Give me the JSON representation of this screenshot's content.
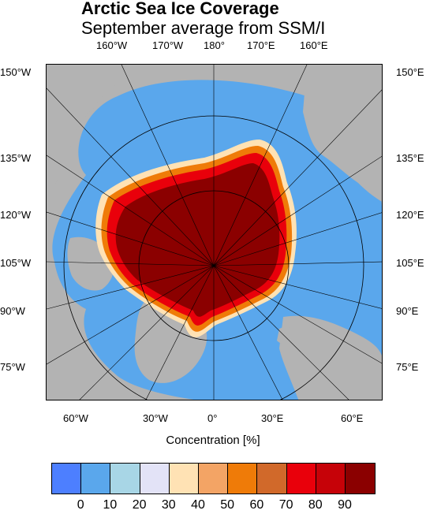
{
  "title": "Arctic Sea Ice Coverage",
  "subtitle": "September average from SSM/I",
  "top_labels": [
    "160°W",
    "170°W",
    "180°",
    "170°E",
    "160°E"
  ],
  "left_labels": [
    "150°W",
    "135°W",
    "120°W",
    "105°W",
    "90°W",
    "75°W"
  ],
  "right_labels": [
    "150°E",
    "135°E",
    "120°E",
    "105°E",
    "90°E",
    "75°E"
  ],
  "bottom_labels": [
    "60°W",
    "30°W",
    "0°",
    "30°E",
    "60°E"
  ],
  "xlabel": "Concentration [%]",
  "colorbar": {
    "colors": [
      "#4d7fff",
      "#5aa7ec",
      "#a8d6e6",
      "#e3e3f7",
      "#ffe2b4",
      "#f3a465",
      "#ef7b08",
      "#d1692a",
      "#e9000b",
      "#c60208",
      "#8b0000"
    ],
    "ticks": [
      "0",
      "10",
      "20",
      "30",
      "40",
      "50",
      "60",
      "70",
      "80",
      "90"
    ]
  },
  "colors": {
    "land": "#b3b3b3",
    "ocean": "#5aa7ec",
    "ice_core": "#8b0000"
  }
}
